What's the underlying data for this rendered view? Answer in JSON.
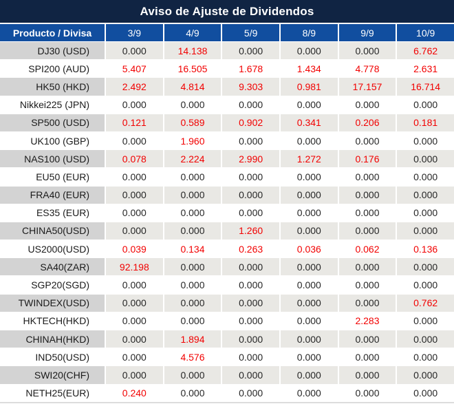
{
  "title": "Aviso de Ajuste de Dividendos",
  "colors": {
    "title_bg": "#102443",
    "header_bg": "#114e9f",
    "alt_row_bg": "#e9e8e4",
    "alt_row_product_bg": "#d3d3d3",
    "zero_text": "#262626",
    "adjustment_text": "#f20000"
  },
  "table": {
    "product_header": "Producto / Divisa",
    "date_headers": [
      "3/9",
      "4/9",
      "5/9",
      "8/9",
      "9/9",
      "10/9"
    ],
    "rows": [
      {
        "product": "DJ30 (USD)",
        "values": [
          "0.000",
          "14.138",
          "0.000",
          "0.000",
          "0.000",
          "6.762"
        ],
        "red": [
          false,
          true,
          false,
          false,
          false,
          true
        ]
      },
      {
        "product": "SPI200 (AUD)",
        "values": [
          "5.407",
          "16.505",
          "1.678",
          "1.434",
          "4.778",
          "2.631"
        ],
        "red": [
          true,
          true,
          true,
          true,
          true,
          true
        ]
      },
      {
        "product": "HK50 (HKD)",
        "values": [
          "2.492",
          "4.814",
          "9.303",
          "0.981",
          "17.157",
          "16.714"
        ],
        "red": [
          true,
          true,
          true,
          true,
          true,
          true
        ]
      },
      {
        "product": "Nikkei225 (JPN)",
        "values": [
          "0.000",
          "0.000",
          "0.000",
          "0.000",
          "0.000",
          "0.000"
        ],
        "red": [
          false,
          false,
          false,
          false,
          false,
          false
        ]
      },
      {
        "product": "SP500 (USD)",
        "values": [
          "0.121",
          "0.589",
          "0.902",
          "0.341",
          "0.206",
          "0.181"
        ],
        "red": [
          true,
          true,
          true,
          true,
          true,
          true
        ]
      },
      {
        "product": "UK100 (GBP)",
        "values": [
          "0.000",
          "1.960",
          "0.000",
          "0.000",
          "0.000",
          "0.000"
        ],
        "red": [
          false,
          true,
          false,
          false,
          false,
          false
        ]
      },
      {
        "product": "NAS100 (USD)",
        "values": [
          "0.078",
          "2.224",
          "2.990",
          "1.272",
          "0.176",
          "0.000"
        ],
        "red": [
          true,
          true,
          true,
          true,
          true,
          false
        ]
      },
      {
        "product": "EU50 (EUR)",
        "values": [
          "0.000",
          "0.000",
          "0.000",
          "0.000",
          "0.000",
          "0.000"
        ],
        "red": [
          false,
          false,
          false,
          false,
          false,
          false
        ]
      },
      {
        "product": "FRA40 (EUR)",
        "values": [
          "0.000",
          "0.000",
          "0.000",
          "0.000",
          "0.000",
          "0.000"
        ],
        "red": [
          false,
          false,
          false,
          false,
          false,
          false
        ]
      },
      {
        "product": "ES35 (EUR)",
        "values": [
          "0.000",
          "0.000",
          "0.000",
          "0.000",
          "0.000",
          "0.000"
        ],
        "red": [
          false,
          false,
          false,
          false,
          false,
          false
        ]
      },
      {
        "product": "CHINA50(USD)",
        "values": [
          "0.000",
          "0.000",
          "1.260",
          "0.000",
          "0.000",
          "0.000"
        ],
        "red": [
          false,
          false,
          true,
          false,
          false,
          false
        ]
      },
      {
        "product": "US2000(USD)",
        "values": [
          "0.039",
          "0.134",
          "0.263",
          "0.036",
          "0.062",
          "0.136"
        ],
        "red": [
          true,
          true,
          true,
          true,
          true,
          true
        ]
      },
      {
        "product": "SA40(ZAR)",
        "values": [
          "92.198",
          "0.000",
          "0.000",
          "0.000",
          "0.000",
          "0.000"
        ],
        "red": [
          true,
          false,
          false,
          false,
          false,
          false
        ]
      },
      {
        "product": "SGP20(SGD)",
        "values": [
          "0.000",
          "0.000",
          "0.000",
          "0.000",
          "0.000",
          "0.000"
        ],
        "red": [
          false,
          false,
          false,
          false,
          false,
          false
        ]
      },
      {
        "product": "TWINDEX(USD)",
        "values": [
          "0.000",
          "0.000",
          "0.000",
          "0.000",
          "0.000",
          "0.762"
        ],
        "red": [
          false,
          false,
          false,
          false,
          false,
          true
        ]
      },
      {
        "product": "HKTECH(HKD)",
        "values": [
          "0.000",
          "0.000",
          "0.000",
          "0.000",
          "2.283",
          "0.000"
        ],
        "red": [
          false,
          false,
          false,
          false,
          true,
          false
        ]
      },
      {
        "product": "CHINAH(HKD)",
        "values": [
          "0.000",
          "1.894",
          "0.000",
          "0.000",
          "0.000",
          "0.000"
        ],
        "red": [
          false,
          true,
          false,
          false,
          false,
          false
        ]
      },
      {
        "product": "IND50(USD)",
        "values": [
          "0.000",
          "4.576",
          "0.000",
          "0.000",
          "0.000",
          "0.000"
        ],
        "red": [
          false,
          true,
          false,
          false,
          false,
          false
        ]
      },
      {
        "product": "SWI20(CHF)",
        "values": [
          "0.000",
          "0.000",
          "0.000",
          "0.000",
          "0.000",
          "0.000"
        ],
        "red": [
          false,
          false,
          false,
          false,
          false,
          false
        ]
      },
      {
        "product": "NETH25(EUR)",
        "values": [
          "0.240",
          "0.000",
          "0.000",
          "0.000",
          "0.000",
          "0.000"
        ],
        "red": [
          true,
          false,
          false,
          false,
          false,
          false
        ]
      }
    ]
  }
}
